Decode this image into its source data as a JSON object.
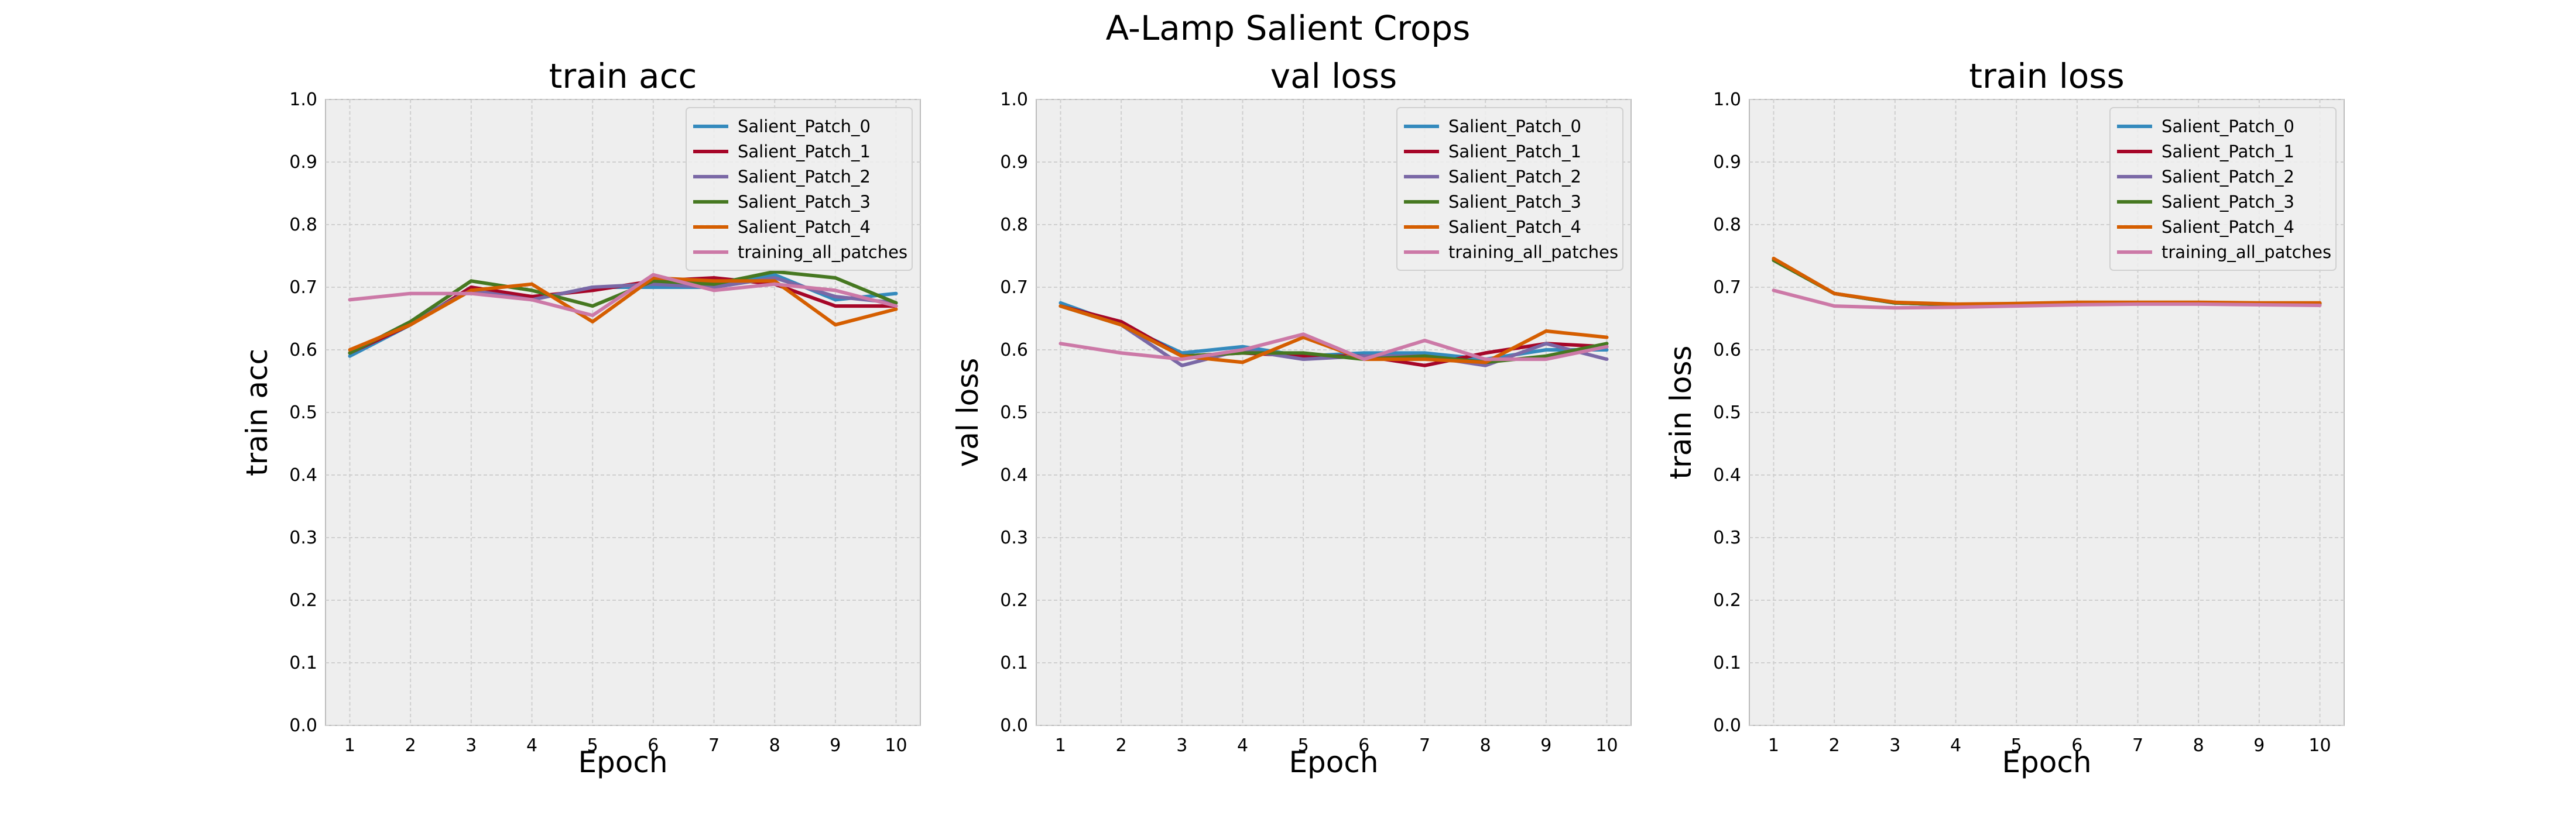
{
  "figure": {
    "title": "A-Lamp Salient Crops"
  },
  "legend_placement": "upper-right",
  "grid": true,
  "series_styles": [
    {
      "name": "Salient_Patch_0",
      "color": "#348abd"
    },
    {
      "name": "Salient_Patch_1",
      "color": "#a60628"
    },
    {
      "name": "Salient_Patch_2",
      "color": "#7a68a6"
    },
    {
      "name": "Salient_Patch_3",
      "color": "#467821"
    },
    {
      "name": "Salient_Patch_4",
      "color": "#d55e00"
    },
    {
      "name": "training_all_patches",
      "color": "#cc79a7"
    }
  ],
  "chart_data": [
    {
      "type": "line",
      "title": "train acc",
      "xlabel": "Epoch",
      "ylabel": "train acc",
      "x": [
        1,
        2,
        3,
        4,
        5,
        6,
        7,
        8,
        9,
        10
      ],
      "ylim": [
        0.0,
        1.0
      ],
      "yticks": [
        0.0,
        0.1,
        0.2,
        0.3,
        0.4,
        0.5,
        0.6,
        0.7,
        0.8,
        0.9,
        1.0
      ],
      "series": [
        {
          "name": "Salient_Patch_0",
          "values": [
            0.59,
            0.64,
            0.7,
            0.68,
            0.7,
            0.7,
            0.7,
            0.72,
            0.68,
            0.69
          ]
        },
        {
          "name": "Salient_Patch_1",
          "values": [
            0.595,
            0.64,
            0.7,
            0.685,
            0.695,
            0.71,
            0.715,
            0.705,
            0.67,
            0.67
          ]
        },
        {
          "name": "Salient_Patch_2",
          "values": [
            0.595,
            0.645,
            0.695,
            0.68,
            0.7,
            0.705,
            0.7,
            0.715,
            0.685,
            0.675
          ]
        },
        {
          "name": "Salient_Patch_3",
          "values": [
            0.595,
            0.645,
            0.71,
            0.695,
            0.67,
            0.71,
            0.705,
            0.725,
            0.715,
            0.675
          ]
        },
        {
          "name": "Salient_Patch_4",
          "values": [
            0.6,
            0.64,
            0.695,
            0.705,
            0.645,
            0.715,
            0.71,
            0.71,
            0.64,
            0.665
          ]
        },
        {
          "name": "training_all_patches",
          "values": [
            0.68,
            0.69,
            0.69,
            0.68,
            0.655,
            0.72,
            0.695,
            0.705,
            0.695,
            0.67
          ]
        }
      ]
    },
    {
      "type": "line",
      "title": "val loss",
      "xlabel": "Epoch",
      "ylabel": "val loss",
      "x": [
        1,
        2,
        3,
        4,
        5,
        6,
        7,
        8,
        9,
        10
      ],
      "ylim": [
        0.0,
        1.0
      ],
      "yticks": [
        0.0,
        0.1,
        0.2,
        0.3,
        0.4,
        0.5,
        0.6,
        0.7,
        0.8,
        0.9,
        1.0
      ],
      "series": [
        {
          "name": "Salient_Patch_0",
          "values": [
            0.675,
            0.64,
            0.595,
            0.605,
            0.59,
            0.595,
            0.595,
            0.585,
            0.6,
            0.6
          ]
        },
        {
          "name": "Salient_Patch_1",
          "values": [
            0.67,
            0.645,
            0.59,
            0.595,
            0.59,
            0.59,
            0.575,
            0.595,
            0.61,
            0.605
          ]
        },
        {
          "name": "Salient_Patch_2",
          "values": [
            0.67,
            0.64,
            0.575,
            0.6,
            0.585,
            0.59,
            0.59,
            0.575,
            0.61,
            0.585
          ]
        },
        {
          "name": "Salient_Patch_3",
          "values": [
            0.67,
            0.64,
            0.59,
            0.595,
            0.595,
            0.585,
            0.59,
            0.58,
            0.59,
            0.61
          ]
        },
        {
          "name": "Salient_Patch_4",
          "values": [
            0.67,
            0.64,
            0.59,
            0.58,
            0.62,
            0.585,
            0.585,
            0.58,
            0.63,
            0.62
          ]
        },
        {
          "name": "training_all_patches",
          "values": [
            0.61,
            0.595,
            0.585,
            0.6,
            0.625,
            0.585,
            0.615,
            0.585,
            0.585,
            0.605
          ]
        }
      ]
    },
    {
      "type": "line",
      "title": "train loss",
      "xlabel": "Epoch",
      "ylabel": "train loss",
      "x": [
        1,
        2,
        3,
        4,
        5,
        6,
        7,
        8,
        9,
        10
      ],
      "ylim": [
        0.0,
        1.0
      ],
      "yticks": [
        0.0,
        0.1,
        0.2,
        0.3,
        0.4,
        0.5,
        0.6,
        0.7,
        0.8,
        0.9,
        1.0
      ],
      "series": [
        {
          "name": "Salient_Patch_0",
          "values": [
            0.745,
            0.69,
            0.675,
            0.672,
            0.673,
            0.675,
            0.675,
            0.675,
            0.674,
            0.674
          ]
        },
        {
          "name": "Salient_Patch_1",
          "values": [
            0.745,
            0.69,
            0.675,
            0.672,
            0.673,
            0.675,
            0.675,
            0.675,
            0.674,
            0.674
          ]
        },
        {
          "name": "Salient_Patch_2",
          "values": [
            0.745,
            0.69,
            0.675,
            0.672,
            0.673,
            0.675,
            0.675,
            0.675,
            0.674,
            0.674
          ]
        },
        {
          "name": "Salient_Patch_3",
          "values": [
            0.743,
            0.69,
            0.675,
            0.672,
            0.673,
            0.675,
            0.675,
            0.675,
            0.674,
            0.674
          ]
        },
        {
          "name": "Salient_Patch_4",
          "values": [
            0.746,
            0.69,
            0.676,
            0.673,
            0.674,
            0.676,
            0.676,
            0.676,
            0.675,
            0.675
          ]
        },
        {
          "name": "training_all_patches",
          "values": [
            0.695,
            0.67,
            0.667,
            0.668,
            0.67,
            0.672,
            0.673,
            0.673,
            0.672,
            0.671
          ]
        }
      ]
    }
  ]
}
